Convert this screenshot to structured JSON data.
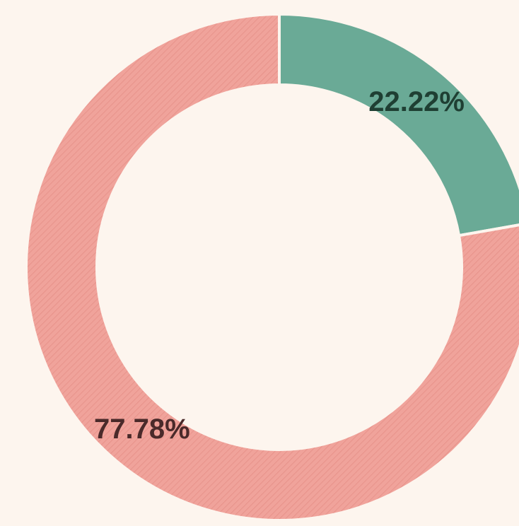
{
  "chart_data": {
    "type": "donut",
    "values": [
      22.22,
      77.78
    ],
    "value_labels": [
      "22.22%",
      "77.78%"
    ],
    "colors": [
      "#6aaa96",
      "#f0a39b"
    ],
    "label_colors": [
      "#1f3f33",
      "#4a2a2a"
    ],
    "hatch": [
      false,
      true
    ]
  }
}
